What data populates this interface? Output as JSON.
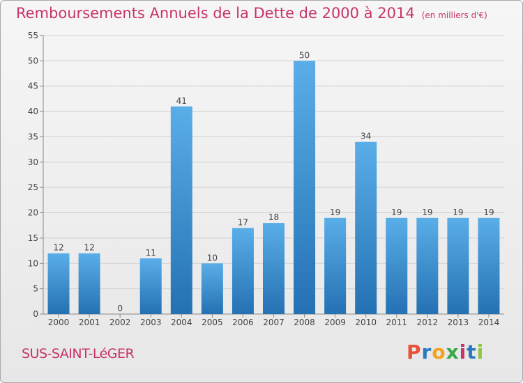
{
  "header": {
    "title": "Remboursements Annuels de la Dette de 2000 à 2014",
    "unit": "(en milliers d'€)"
  },
  "footer": {
    "town": "SUS-SAINT-LéGER",
    "brand_letters": [
      "P",
      "r",
      "o",
      "x",
      "i",
      "t",
      "i"
    ],
    "brand_colors": [
      "#e8503a",
      "#2a7ac0",
      "#f3a21c",
      "#3aa847",
      "#c8336a",
      "#2a7ac0",
      "#8dc63f"
    ]
  },
  "colors": {
    "bar_top": "#5aaee8",
    "bar_bottom": "#2471b3",
    "accent": "#c8336a",
    "grid": "#d0d0d0"
  },
  "chart_data": {
    "type": "bar",
    "title": "Remboursements Annuels de la Dette de 2000 à 2014",
    "ylabel": "en milliers d'€",
    "xlabel": "",
    "categories": [
      "2000",
      "2001",
      "2002",
      "2003",
      "2004",
      "2005",
      "2006",
      "2007",
      "2008",
      "2009",
      "2010",
      "2011",
      "2012",
      "2013",
      "2014"
    ],
    "values": [
      12,
      12,
      0,
      11,
      41,
      10,
      17,
      18,
      50,
      19,
      34,
      19,
      19,
      19,
      19
    ],
    "ylim": [
      0,
      55
    ],
    "yticks": [
      0,
      5,
      10,
      15,
      20,
      25,
      30,
      35,
      40,
      45,
      50,
      55
    ],
    "grid": true
  }
}
